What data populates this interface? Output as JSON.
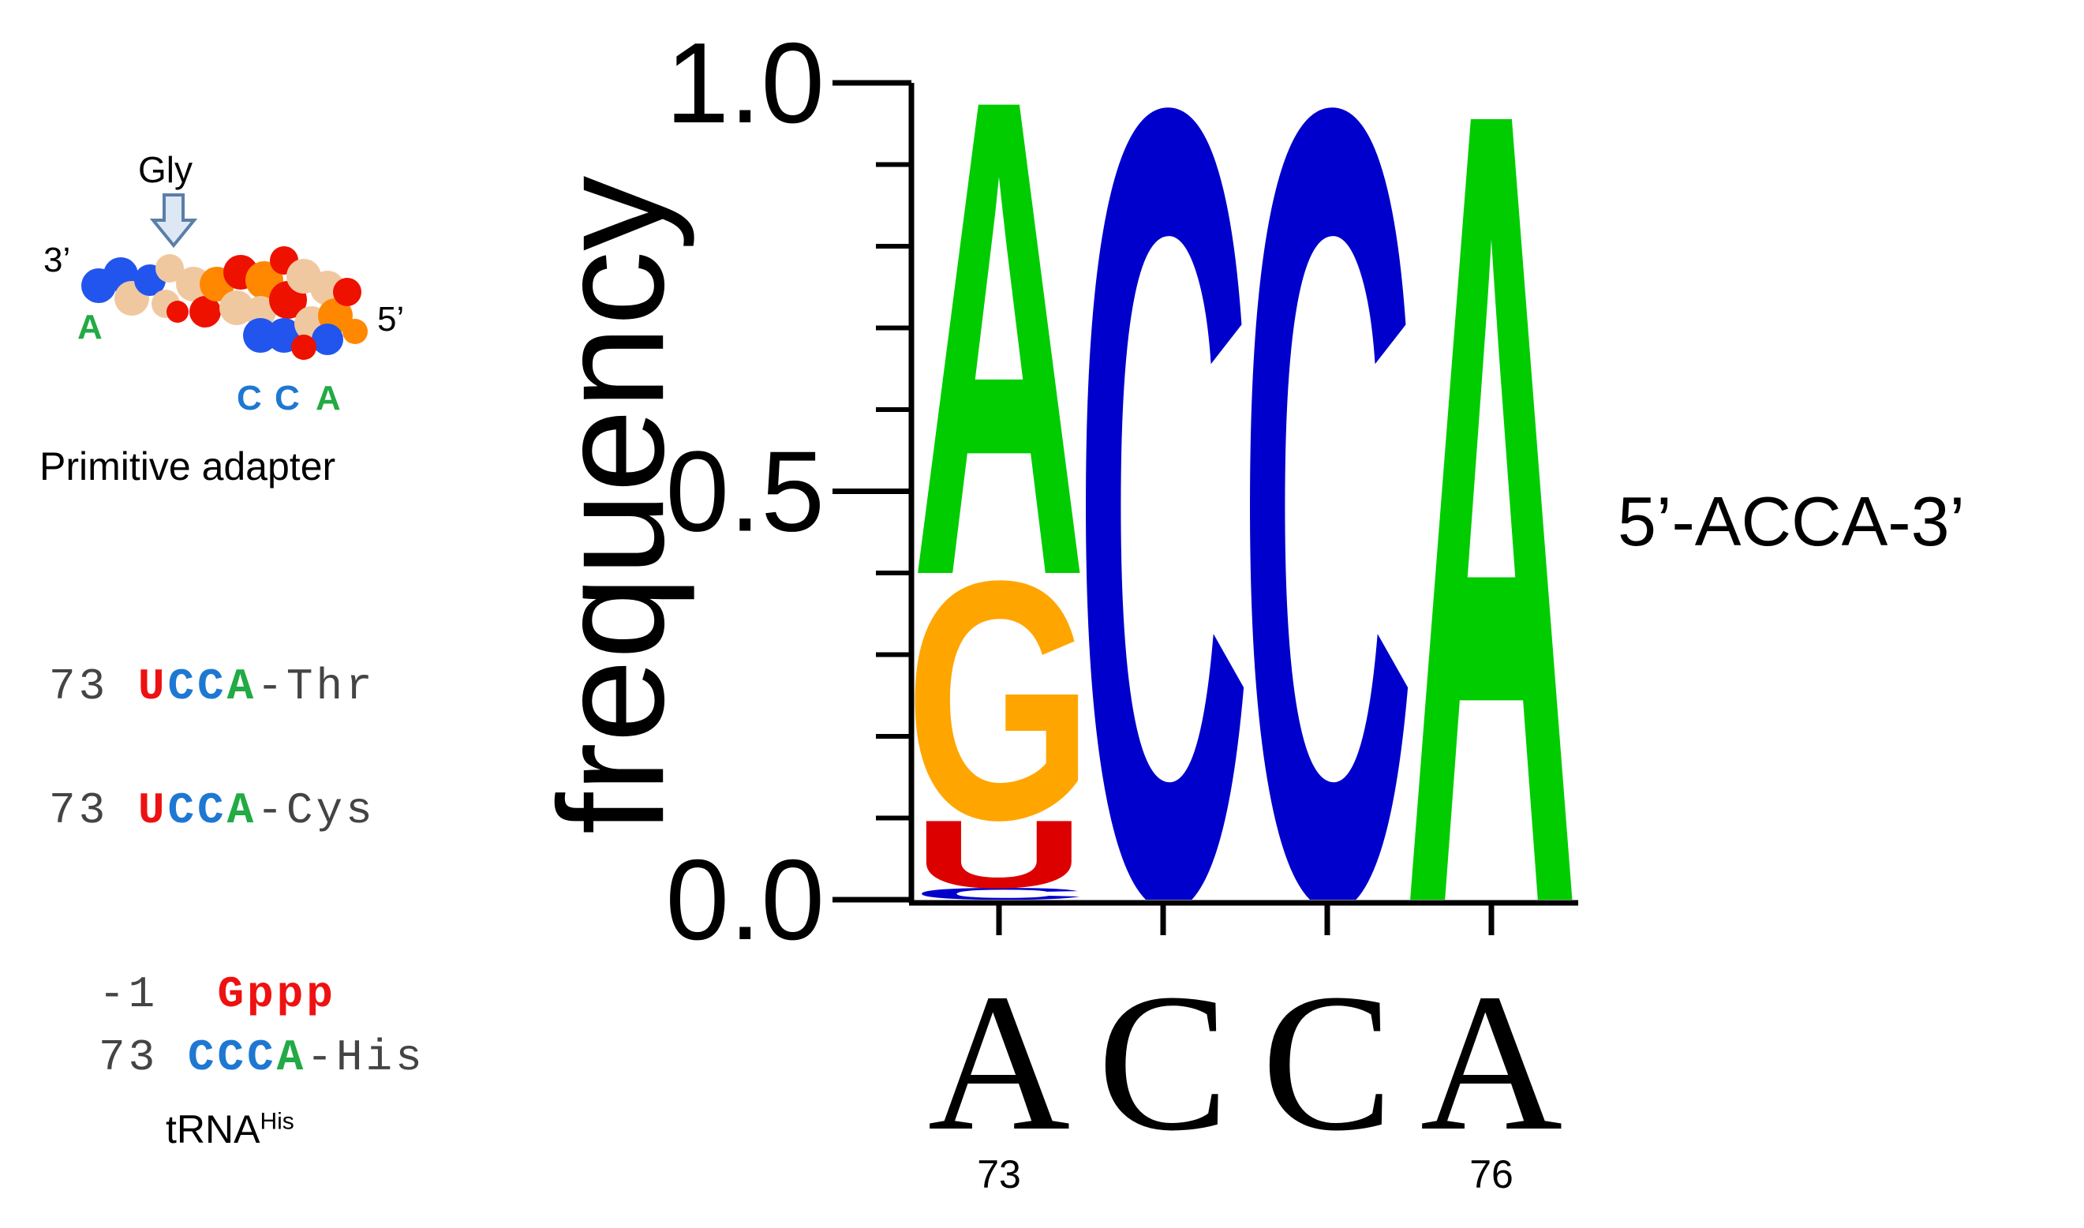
{
  "colors": {
    "A": "#00cc00",
    "C": "#0000cc",
    "G": "#ffa500",
    "U": "#dd0000",
    "red_text": "#ee1111",
    "blue_text": "#1e78d2",
    "green_text": "#22aa44",
    "atom_blue": "#2255ee",
    "atom_tan": "#f0c8a0",
    "atom_red": "#ee1100",
    "atom_orange": "#ff8800"
  },
  "panel_left": {
    "arrow_label": "Gly",
    "end_3": "3’",
    "end_5": "5’",
    "base_A": "A",
    "cca_C1": "C",
    "cca_C2": "C",
    "cca_A": "A",
    "caption": "Primitive adapter",
    "thr": {
      "num": "73",
      "u": "U",
      "cc": "CC",
      "a": "A",
      "tail": "-Thr"
    },
    "cys": {
      "num": "73",
      "u": "U",
      "cc": "CC",
      "a": "A",
      "tail": "-Cys"
    },
    "his_m1": {
      "num": "-1",
      "gppp": "Gppp"
    },
    "his": {
      "num": "73",
      "ccc": "CCC",
      "a": "A",
      "tail": "-His"
    },
    "trna_main": "tRNA",
    "trna_sup": "His"
  },
  "right_label": "5’-ACCA-3’",
  "chart_data": {
    "type": "sequence-logo",
    "ylabel": "frequency",
    "ylim": [
      0,
      1
    ],
    "yticks": [
      "0.0",
      "0.5",
      "1.0"
    ],
    "positions": [
      {
        "consensus": "A",
        "index_label": "73",
        "stack": [
          {
            "base": "C",
            "freq": 0.015
          },
          {
            "base": "U",
            "freq": 0.085
          },
          {
            "base": "G",
            "freq": 0.3
          },
          {
            "base": "A",
            "freq": 0.6
          }
        ]
      },
      {
        "consensus": "C",
        "index_label": "",
        "stack": [
          {
            "base": "C",
            "freq": 1.0
          }
        ]
      },
      {
        "consensus": "C",
        "index_label": "",
        "stack": [
          {
            "base": "C",
            "freq": 1.0
          }
        ]
      },
      {
        "consensus": "A",
        "index_label": "76",
        "stack": [
          {
            "base": "A",
            "freq": 1.0
          }
        ]
      }
    ]
  }
}
